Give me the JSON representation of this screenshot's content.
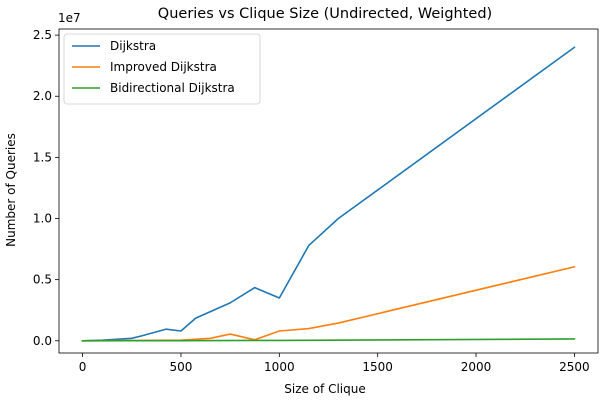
{
  "chart_data": {
    "type": "line",
    "title": "Queries vs Clique Size (Undirected, Weighted)",
    "xlabel": "Size of Clique",
    "ylabel": "Number of Queries",
    "y_offset_label": "1e7",
    "y_scale_factor": 10000000,
    "xlim": [
      -120,
      2620
    ],
    "ylim": [
      -1000000,
      25500000
    ],
    "x_ticks": [
      0,
      500,
      1000,
      1500,
      2000,
      2500
    ],
    "x_tick_labels": [
      "0",
      "500",
      "1000",
      "1500",
      "2000",
      "2500"
    ],
    "y_ticks": [
      0,
      5000000,
      10000000,
      15000000,
      20000000,
      25000000
    ],
    "y_tick_labels": [
      "0.0",
      "0.5",
      "1.0",
      "1.5",
      "2.0",
      "2.5"
    ],
    "grid": false,
    "legend_position": "upper-left",
    "series": [
      {
        "name": "Dijkstra",
        "color": "#1f77b4",
        "x": [
          0,
          100,
          200,
          250,
          300,
          425,
          500,
          575,
          750,
          875,
          1000,
          1150,
          1300,
          2500
        ],
        "y": [
          0,
          50000,
          150000,
          200000,
          400000,
          950000,
          800000,
          1850000,
          3100000,
          4350000,
          3500000,
          7800000,
          10000000,
          24000000
        ]
      },
      {
        "name": "Improved Dijkstra",
        "color": "#ff7f0e",
        "x": [
          0,
          100,
          200,
          300,
          400,
          500,
          650,
          750,
          875,
          1000,
          1150,
          1300,
          2500
        ],
        "y": [
          0,
          10000,
          20000,
          30000,
          40000,
          50000,
          200000,
          550000,
          80000,
          800000,
          1000000,
          1450000,
          6050000
        ]
      },
      {
        "name": "Bidirectional Dijkstra",
        "color": "#2ca02c",
        "x": [
          0,
          500,
          1000,
          2500
        ],
        "y": [
          0,
          10000,
          30000,
          150000
        ]
      }
    ]
  }
}
